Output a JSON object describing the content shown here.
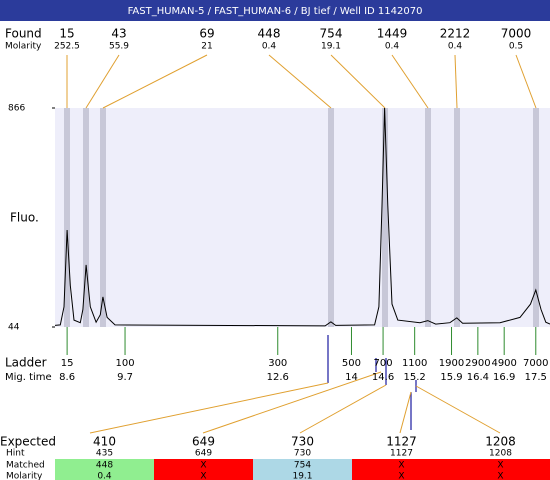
{
  "title": "FAST_HUMAN-5 / FAST_HUMAN-6 / BJ tief / Well ID 1142070",
  "found": {
    "label": "Found",
    "molarity_label": "Molarity",
    "peaks": [
      {
        "size": "15",
        "molarity": "252.5"
      },
      {
        "size": "43",
        "molarity": "55.9"
      },
      {
        "size": "69",
        "molarity": "21"
      },
      {
        "size": "448",
        "molarity": "0.4"
      },
      {
        "size": "754",
        "molarity": "19.1"
      },
      {
        "size": "1449",
        "molarity": "0.4"
      },
      {
        "size": "2212",
        "molarity": "0.4"
      },
      {
        "size": "7000",
        "molarity": "0.5"
      }
    ]
  },
  "chart_data": {
    "type": "line",
    "ylabel": "Fluo.",
    "ylim": [
      44,
      866
    ],
    "yticks": [
      44,
      866
    ],
    "xlim": [
      8.37,
      17.77
    ],
    "color": "#000000",
    "x": [
      8.37,
      8.47,
      8.54,
      8.6,
      8.66,
      8.73,
      8.85,
      8.9,
      8.96,
      9.04,
      9.15,
      9.23,
      9.28,
      9.36,
      9.51,
      13.5,
      13.61,
      13.7,
      14.44,
      14.52,
      14.58,
      14.63,
      14.69,
      14.77,
      14.88,
      15.3,
      15.45,
      15.6,
      15.87,
      16.0,
      16.11,
      16.82,
      17.2,
      17.4,
      17.5,
      17.6,
      17.69,
      17.77
    ],
    "values": [
      50,
      52,
      120,
      408,
      200,
      70,
      60,
      110,
      277,
      120,
      62,
      90,
      157,
      80,
      52,
      48,
      63,
      50,
      52,
      120,
      500,
      866,
      500,
      130,
      70,
      60,
      68,
      55,
      60,
      78,
      58,
      60,
      80,
      130,
      183,
      110,
      62,
      55
    ]
  },
  "ladder": {
    "label": "Ladder",
    "time_label": "Mig. time",
    "items": [
      {
        "size": "15",
        "time": 8.6
      },
      {
        "size": "100",
        "time": 9.7
      },
      {
        "size": "300",
        "time": 12.6
      },
      {
        "size": "500",
        "time": 14
      },
      {
        "size": "700",
        "time": 14.6
      },
      {
        "size": "1100",
        "time": 15.2
      },
      {
        "size": "1900",
        "time": 15.9
      },
      {
        "size": "2900",
        "time": 16.4
      },
      {
        "size": "4900",
        "time": 16.9
      },
      {
        "size": "7000",
        "time": 17.5
      }
    ]
  },
  "expected": {
    "labels": [
      "Expected",
      "Hint",
      "Matched",
      "Molarity"
    ],
    "columns": [
      {
        "expected": "410",
        "hint": "435",
        "matched": "448",
        "molarity": "0.4",
        "color": "#90ee90"
      },
      {
        "expected": "649",
        "hint": "649",
        "matched": "X",
        "molarity": "X",
        "color": "#ff0000"
      },
      {
        "expected": "730",
        "hint": "730",
        "matched": "754",
        "molarity": "19.1",
        "color": "#add8e6"
      },
      {
        "expected": "1127",
        "hint": "1127",
        "matched": "X",
        "molarity": "X",
        "color": "#ff0000"
      },
      {
        "expected": "1208",
        "hint": "1208",
        "matched": "X",
        "molarity": "X",
        "color": "#ff0000"
      }
    ]
  }
}
